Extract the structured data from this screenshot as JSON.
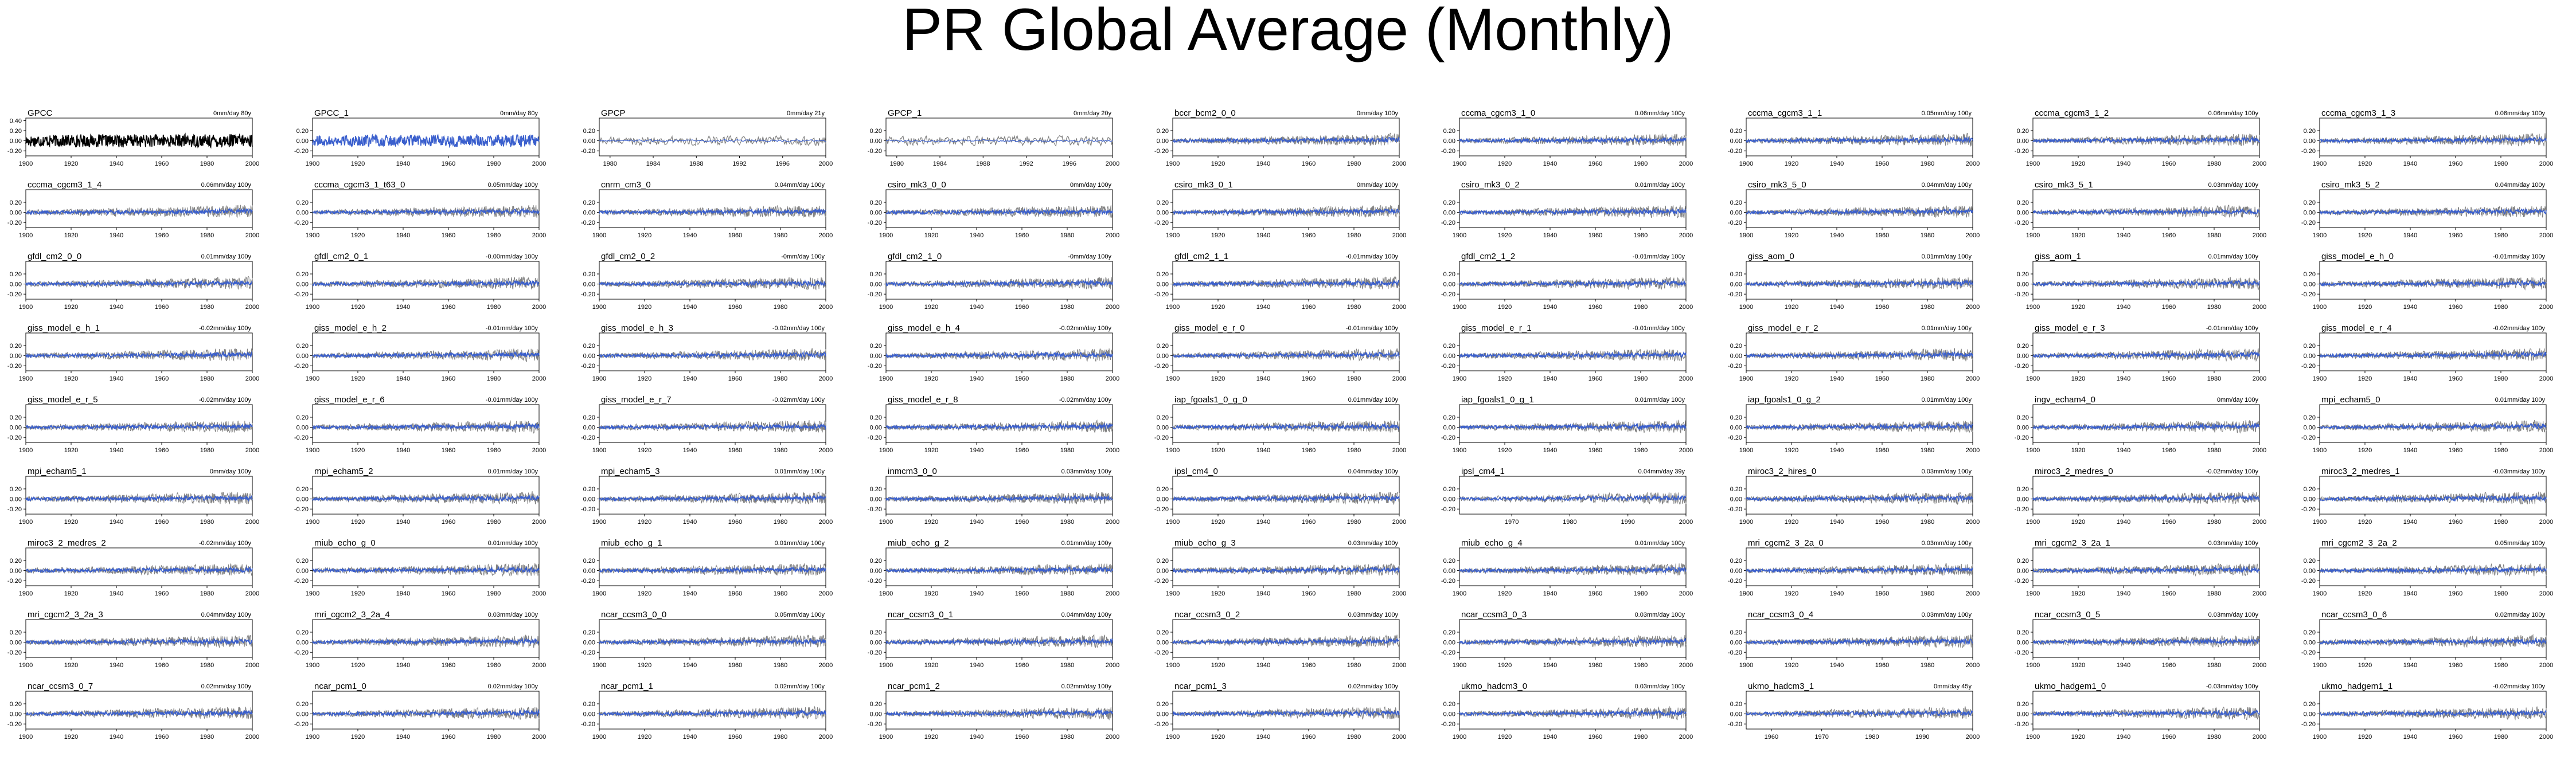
{
  "title": "PR Global Average (Monthly)",
  "colors": {
    "obs": "#000000",
    "model": "#3a5fcd",
    "variability": "#808080"
  },
  "chart_data": {
    "type": "line",
    "default_x": [
      1900,
      2000
    ],
    "default_x_ticks": [
      1900,
      1920,
      1940,
      1960,
      1980,
      2000
    ],
    "y_ticks": [
      "0.40",
      "0.20",
      "0.00",
      "-0.20"
    ],
    "ylim": [
      -0.3,
      0.45
    ],
    "panels": [
      {
        "name": "GPCC",
        "trend": "0mm/day 80y",
        "style": "obs"
      },
      {
        "name": "GPCC_1",
        "trend": "0mm/day 80y",
        "style": "obs-blue"
      },
      {
        "name": "GPCP",
        "trend": "0mm/day 21y",
        "style": "obs-gray",
        "x": [
          1979,
          2000
        ],
        "x_ticks": [
          1980,
          1984,
          1988,
          1992,
          1996,
          2000
        ],
        "x_tick_labels": [
          "1980",
          "1984",
          "1988",
          "1992",
          "1996",
          "2000"
        ]
      },
      {
        "name": "GPCP_1",
        "trend": "0mm/day 20y",
        "style": "obs-gray",
        "x": [
          1979,
          2000
        ],
        "x_ticks": [
          1980,
          1984,
          1988,
          1992,
          1996,
          2000
        ],
        "x_tick_labels": [
          "1980",
          "1984",
          "1988",
          "1992",
          "1996",
          "2000"
        ]
      },
      {
        "name": "bccr_bcm2_0_0",
        "trend": "0mm/day 100y"
      },
      {
        "name": "cccma_cgcm3_1_0",
        "trend": "0.06mm/day 100y"
      },
      {
        "name": "cccma_cgcm3_1_1",
        "trend": "0.05mm/day 100y"
      },
      {
        "name": "cccma_cgcm3_1_2",
        "trend": "0.06mm/day 100y"
      },
      {
        "name": "cccma_cgcm3_1_3",
        "trend": "0.06mm/day 100y"
      },
      {
        "name": "cccma_cgcm3_1_4",
        "trend": "0.06mm/day 100y"
      },
      {
        "name": "cccma_cgcm3_1_t63_0",
        "trend": "0.05mm/day 100y"
      },
      {
        "name": "cnrm_cm3_0",
        "trend": "0.04mm/day 100y"
      },
      {
        "name": "csiro_mk3_0_0",
        "trend": "0mm/day 100y"
      },
      {
        "name": "csiro_mk3_0_1",
        "trend": "0mm/day 100y"
      },
      {
        "name": "csiro_mk3_0_2",
        "trend": "0.01mm/day 100y"
      },
      {
        "name": "csiro_mk3_5_0",
        "trend": "0.04mm/day 100y"
      },
      {
        "name": "csiro_mk3_5_1",
        "trend": "0.03mm/day 100y"
      },
      {
        "name": "csiro_mk3_5_2",
        "trend": "0.04mm/day 100y"
      },
      {
        "name": "gfdl_cm2_0_0",
        "trend": "0.01mm/day 100y"
      },
      {
        "name": "gfdl_cm2_0_1",
        "trend": "-0.00mm/day 100y"
      },
      {
        "name": "gfdl_cm2_0_2",
        "trend": "-0mm/day 100y"
      },
      {
        "name": "gfdl_cm2_1_0",
        "trend": "-0mm/day 100y"
      },
      {
        "name": "gfdl_cm2_1_1",
        "trend": "-0.01mm/day 100y"
      },
      {
        "name": "gfdl_cm2_1_2",
        "trend": "-0.01mm/day 100y"
      },
      {
        "name": "giss_aom_0",
        "trend": "0.01mm/day 100y"
      },
      {
        "name": "giss_aom_1",
        "trend": "0.01mm/day 100y"
      },
      {
        "name": "giss_model_e_h_0",
        "trend": "-0.01mm/day 100y"
      },
      {
        "name": "giss_model_e_h_1",
        "trend": "-0.02mm/day 100y"
      },
      {
        "name": "giss_model_e_h_2",
        "trend": "-0.01mm/day 100y"
      },
      {
        "name": "giss_model_e_h_3",
        "trend": "-0.02mm/day 100y"
      },
      {
        "name": "giss_model_e_h_4",
        "trend": "-0.02mm/day 100y"
      },
      {
        "name": "giss_model_e_r_0",
        "trend": "-0.01mm/day 100y"
      },
      {
        "name": "giss_model_e_r_1",
        "trend": "-0.01mm/day 100y"
      },
      {
        "name": "giss_model_e_r_2",
        "trend": "0.01mm/day 100y"
      },
      {
        "name": "giss_model_e_r_3",
        "trend": "-0.01mm/day 100y"
      },
      {
        "name": "giss_model_e_r_4",
        "trend": "-0.02mm/day 100y"
      },
      {
        "name": "giss_model_e_r_5",
        "trend": "-0.02mm/day 100y"
      },
      {
        "name": "giss_model_e_r_6",
        "trend": "-0.01mm/day 100y"
      },
      {
        "name": "giss_model_e_r_7",
        "trend": "-0.02mm/day 100y"
      },
      {
        "name": "giss_model_e_r_8",
        "trend": "-0.02mm/day 100y"
      },
      {
        "name": "iap_fgoals1_0_g_0",
        "trend": "0.01mm/day 100y"
      },
      {
        "name": "iap_fgoals1_0_g_1",
        "trend": "0.01mm/day 100y"
      },
      {
        "name": "iap_fgoals1_0_g_2",
        "trend": "0.01mm/day 100y"
      },
      {
        "name": "ingv_echam4_0",
        "trend": "0mm/day 100y"
      },
      {
        "name": "mpi_echam5_0",
        "trend": "0.01mm/day 100y"
      },
      {
        "name": "mpi_echam5_1",
        "trend": "0mm/day 100y"
      },
      {
        "name": "mpi_echam5_2",
        "trend": "0.01mm/day 100y"
      },
      {
        "name": "mpi_echam5_3",
        "trend": "0.01mm/day 100y"
      },
      {
        "name": "inmcm3_0_0",
        "trend": "0.03mm/day 100y"
      },
      {
        "name": "ipsl_cm4_0",
        "trend": "0.04mm/day 100y"
      },
      {
        "name": "ipsl_cm4_1",
        "trend": "0.04mm/day 39y",
        "x": [
          1961,
          2000
        ],
        "x_ticks": [
          1970,
          1980,
          1990,
          2000
        ],
        "x_tick_labels": [
          "1970",
          "1980",
          "1990",
          "2000"
        ]
      },
      {
        "name": "miroc3_2_hires_0",
        "trend": "0.03mm/day 100y"
      },
      {
        "name": "miroc3_2_medres_0",
        "trend": "-0.02mm/day 100y"
      },
      {
        "name": "miroc3_2_medres_1",
        "trend": "-0.03mm/day 100y"
      },
      {
        "name": "miroc3_2_medres_2",
        "trend": "-0.02mm/day 100y"
      },
      {
        "name": "miub_echo_g_0",
        "trend": "0.01mm/day 100y"
      },
      {
        "name": "miub_echo_g_1",
        "trend": "0.01mm/day 100y"
      },
      {
        "name": "miub_echo_g_2",
        "trend": "0.01mm/day 100y"
      },
      {
        "name": "miub_echo_g_3",
        "trend": "0.03mm/day 100y"
      },
      {
        "name": "miub_echo_g_4",
        "trend": "0.01mm/day 100y"
      },
      {
        "name": "mri_cgcm2_3_2a_0",
        "trend": "0.03mm/day 100y"
      },
      {
        "name": "mri_cgcm2_3_2a_1",
        "trend": "0.03mm/day 100y"
      },
      {
        "name": "mri_cgcm2_3_2a_2",
        "trend": "0.05mm/day 100y"
      },
      {
        "name": "mri_cgcm2_3_2a_3",
        "trend": "0.04mm/day 100y"
      },
      {
        "name": "mri_cgcm2_3_2a_4",
        "trend": "0.03mm/day 100y"
      },
      {
        "name": "ncar_ccsm3_0_0",
        "trend": "0.05mm/day 100y"
      },
      {
        "name": "ncar_ccsm3_0_1",
        "trend": "0.04mm/day 100y"
      },
      {
        "name": "ncar_ccsm3_0_2",
        "trend": "0.03mm/day 100y"
      },
      {
        "name": "ncar_ccsm3_0_3",
        "trend": "0.03mm/day 100y"
      },
      {
        "name": "ncar_ccsm3_0_4",
        "trend": "0.03mm/day 100y"
      },
      {
        "name": "ncar_ccsm3_0_5",
        "trend": "0.03mm/day 100y"
      },
      {
        "name": "ncar_ccsm3_0_6",
        "trend": "0.02mm/day 100y"
      },
      {
        "name": "ncar_ccsm3_0_7",
        "trend": "0.02mm/day 100y"
      },
      {
        "name": "ncar_pcm1_0",
        "trend": "0.02mm/day 100y"
      },
      {
        "name": "ncar_pcm1_1",
        "trend": "0.02mm/day 100y"
      },
      {
        "name": "ncar_pcm1_2",
        "trend": "0.02mm/day 100y"
      },
      {
        "name": "ncar_pcm1_3",
        "trend": "0.02mm/day 100y"
      },
      {
        "name": "ukmo_hadcm3_0",
        "trend": "0.03mm/day 100y"
      },
      {
        "name": "ukmo_hadcm3_1",
        "trend": "0mm/day 45y",
        "x": [
          1955,
          2000
        ],
        "x_ticks": [
          1960,
          1970,
          1980,
          1990,
          2000
        ],
        "x_tick_labels": [
          "1960",
          "1970",
          "1980",
          "1990",
          "2000"
        ]
      },
      {
        "name": "ukmo_hadgem1_0",
        "trend": "-0.03mm/day 100y"
      },
      {
        "name": "ukmo_hadgem1_1",
        "trend": "-0.02mm/day 100y"
      }
    ]
  }
}
